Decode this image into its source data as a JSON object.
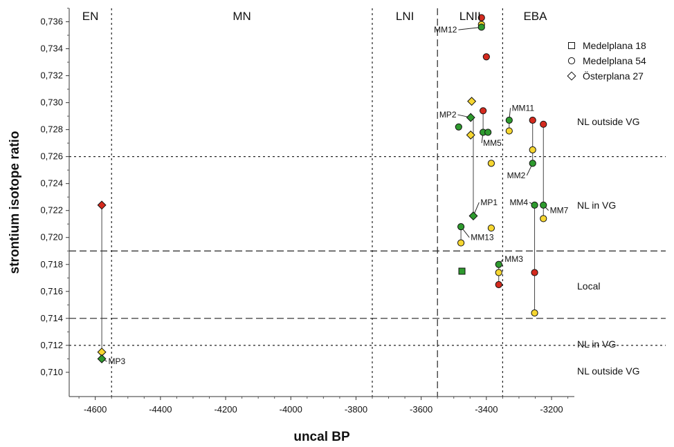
{
  "chart_data": {
    "type": "scatter",
    "xlabel": "uncal BP",
    "ylabel": "strontium isotope ratio",
    "xlim": [
      -4680,
      -3130
    ],
    "ylim": [
      0.7082,
      0.737
    ],
    "xticks": [
      -4600,
      -4400,
      -4200,
      -4000,
      -3800,
      -3600,
      -3400,
      -3200
    ],
    "xtick_labels": [
      "-4600",
      "-4400",
      "-4200",
      "-4000",
      "-3800",
      "-3600",
      "-3400",
      "-3200"
    ],
    "yticks": [
      0.71,
      0.712,
      0.714,
      0.716,
      0.718,
      0.72,
      0.722,
      0.724,
      0.726,
      0.728,
      0.73,
      0.732,
      0.734,
      0.736
    ],
    "ytick_labels": [
      "0,710",
      "0,712",
      "0,714",
      "0,716",
      "0,718",
      "0,720",
      "0,722",
      "0,724",
      "0,726",
      "0,728",
      "0,730",
      "0,732",
      "0,734",
      "0,736"
    ],
    "periods": [
      {
        "label": "EN",
        "x": -4615
      },
      {
        "label": "MN",
        "x": -4150
      },
      {
        "label": "LNI",
        "x": -3650
      },
      {
        "label": "LNII",
        "x": -3450
      },
      {
        "label": "EBA",
        "x": -3250
      }
    ],
    "period_boundaries": [
      {
        "x": -4550,
        "style": "dotted"
      },
      {
        "x": -3750,
        "style": "dotted"
      },
      {
        "x": -3550,
        "style": "dashed"
      },
      {
        "x": -3350,
        "style": "dotted"
      }
    ],
    "zone_boundaries": [
      {
        "y": 0.726,
        "style": "dotted"
      },
      {
        "y": 0.719,
        "style": "dashed"
      },
      {
        "y": 0.714,
        "style": "dashed"
      },
      {
        "y": 0.712,
        "style": "dotted"
      }
    ],
    "zones": [
      {
        "label": "NL outside VG",
        "y": 0.7286
      },
      {
        "label": "NL in VG",
        "y": 0.7224
      },
      {
        "label": "Local",
        "y": 0.7164
      },
      {
        "label": "NL in VG",
        "y": 0.7121
      },
      {
        "label": "NL outside VG",
        "y": 0.7101
      }
    ],
    "legend": {
      "placement": "top-right",
      "entries": [
        {
          "label": "Medelplana 18",
          "marker": "square"
        },
        {
          "label": "Medelplana 54",
          "marker": "circle"
        },
        {
          "label": "Österplana 27",
          "marker": "diamond"
        }
      ]
    },
    "colors": {
      "green": "#2e9a2e",
      "yellow": "#f6d630",
      "red": "#d42a1e"
    },
    "series": [
      {
        "marker": "square",
        "points": [
          {
            "x": -3475,
            "y": 0.7175,
            "color": "green"
          }
        ]
      },
      {
        "marker": "circle",
        "points": [
          {
            "x": -3415,
            "y": 0.7363,
            "color": "red"
          },
          {
            "x": -3415,
            "y": 0.7358,
            "color": "yellow"
          },
          {
            "x": -3415,
            "y": 0.7356,
            "color": "green"
          },
          {
            "x": -3400,
            "y": 0.7334,
            "color": "red"
          },
          {
            "x": -3485,
            "y": 0.7282,
            "color": "green"
          },
          {
            "x": -3410,
            "y": 0.7294,
            "color": "red"
          },
          {
            "x": -3410,
            "y": 0.7278,
            "color": "green"
          },
          {
            "x": -3395,
            "y": 0.7278,
            "color": "green"
          },
          {
            "x": -3385,
            "y": 0.7255,
            "color": "yellow"
          },
          {
            "x": -3330,
            "y": 0.7287,
            "color": "green"
          },
          {
            "x": -3330,
            "y": 0.7279,
            "color": "yellow"
          },
          {
            "x": -3258,
            "y": 0.7287,
            "color": "red"
          },
          {
            "x": -3258,
            "y": 0.7265,
            "color": "yellow"
          },
          {
            "x": -3258,
            "y": 0.7255,
            "color": "green"
          },
          {
            "x": -3225,
            "y": 0.7284,
            "color": "red"
          },
          {
            "x": -3225,
            "y": 0.7224,
            "color": "green"
          },
          {
            "x": -3225,
            "y": 0.7214,
            "color": "yellow"
          },
          {
            "x": -3252,
            "y": 0.7224,
            "color": "green"
          },
          {
            "x": -3252,
            "y": 0.7174,
            "color": "red"
          },
          {
            "x": -3252,
            "y": 0.7144,
            "color": "yellow"
          },
          {
            "x": -3478,
            "y": 0.7208,
            "color": "green"
          },
          {
            "x": -3478,
            "y": 0.7196,
            "color": "yellow"
          },
          {
            "x": -3385,
            "y": 0.7207,
            "color": "yellow"
          },
          {
            "x": -3362,
            "y": 0.718,
            "color": "green"
          },
          {
            "x": -3362,
            "y": 0.7174,
            "color": "yellow"
          },
          {
            "x": -3362,
            "y": 0.7165,
            "color": "red"
          }
        ]
      },
      {
        "marker": "diamond",
        "points": [
          {
            "x": -4580,
            "y": 0.7224,
            "color": "red"
          },
          {
            "x": -4580,
            "y": 0.7115,
            "color": "yellow"
          },
          {
            "x": -4580,
            "y": 0.711,
            "color": "green"
          },
          {
            "x": -3445,
            "y": 0.7301,
            "color": "yellow"
          },
          {
            "x": -3448,
            "y": 0.7289,
            "color": "green"
          },
          {
            "x": -3448,
            "y": 0.7276,
            "color": "yellow"
          },
          {
            "x": -3440,
            "y": 0.7216,
            "color": "green"
          }
        ]
      }
    ],
    "connectors": [
      {
        "x": -4580,
        "y1": 0.7224,
        "y2": 0.711
      },
      {
        "x": -3415,
        "y1": 0.7363,
        "y2": 0.7356
      },
      {
        "x": -3410,
        "y1": 0.7294,
        "y2": 0.7278
      },
      {
        "x": -3330,
        "y1": 0.7287,
        "y2": 0.7279
      },
      {
        "x": -3258,
        "y1": 0.7287,
        "y2": 0.7255
      },
      {
        "x": -3225,
        "y1": 0.7284,
        "y2": 0.7214
      },
      {
        "x": -3252,
        "y1": 0.7224,
        "y2": 0.7144
      },
      {
        "x": -3478,
        "y1": 0.7208,
        "y2": 0.7196
      },
      {
        "x": -3362,
        "y1": 0.718,
        "y2": 0.7165
      },
      {
        "x": -3440,
        "y1": 0.7289,
        "y2": 0.7216
      }
    ],
    "annotations": [
      {
        "label": "MM12",
        "x": -3490,
        "y": 0.7352,
        "anchor": "end",
        "px": -3415,
        "py": 0.7356
      },
      {
        "label": "MM11",
        "x": -3322,
        "y": 0.7294,
        "anchor": "start",
        "px": -3330,
        "py": 0.7287
      },
      {
        "label": "MP2",
        "x": -3492,
        "y": 0.7289,
        "anchor": "end",
        "px": -3448,
        "py": 0.7289
      },
      {
        "label": "MM5",
        "x": -3410,
        "y": 0.7268,
        "anchor": "start",
        "px": -3410,
        "py": 0.7278
      },
      {
        "label": "MM2",
        "x": -3280,
        "y": 0.7244,
        "anchor": "end",
        "px": -3258,
        "py": 0.7255
      },
      {
        "label": "MP1",
        "x": -3418,
        "y": 0.7224,
        "anchor": "start",
        "px": -3440,
        "py": 0.7216
      },
      {
        "label": "MM4",
        "x": -3272,
        "y": 0.7224,
        "anchor": "end",
        "px": -3252,
        "py": 0.7224
      },
      {
        "label": "MM7",
        "x": -3205,
        "y": 0.7218,
        "anchor": "start",
        "px": -3225,
        "py": 0.7224
      },
      {
        "label": "MM13",
        "x": -3448,
        "y": 0.7198,
        "anchor": "start",
        "px": -3478,
        "py": 0.7208
      },
      {
        "label": "MM3",
        "x": -3344,
        "y": 0.7182,
        "anchor": "start",
        "px": -3362,
        "py": 0.718
      },
      {
        "label": "MP3",
        "x": -4560,
        "y": 0.7106,
        "anchor": "start",
        "px": -4580,
        "py": 0.711
      }
    ]
  }
}
